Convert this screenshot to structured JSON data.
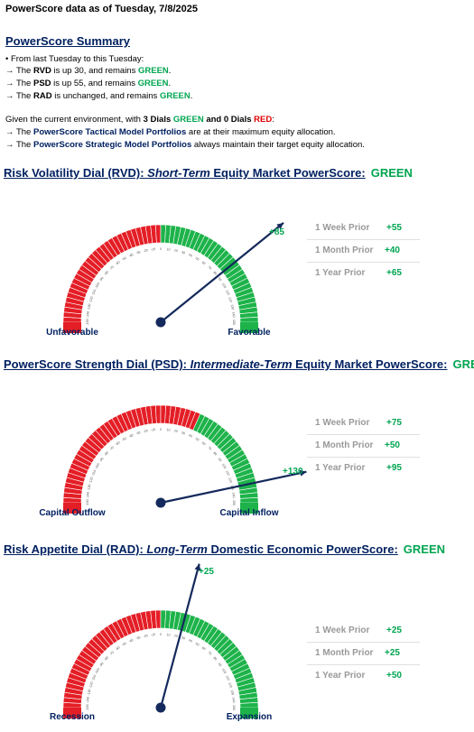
{
  "header": {
    "title": "PowerScore data as of Tuesday, 7/8/2025"
  },
  "summary": {
    "title": "PowerScore Summary",
    "intro": "• From last Tuesday to this Tuesday:",
    "rvd": {
      "pre": "→ The ",
      "name": "RVD",
      "mid": " is up 30, and remains ",
      "status": "GREEN",
      "end": "."
    },
    "psd": {
      "pre": "→ The ",
      "name": "PSD",
      "mid": " is up 55, and remains ",
      "status": "GREEN",
      "end": "."
    },
    "rad": {
      "pre": "→ The ",
      "name": "RAD",
      "mid": " is unchanged, and remains ",
      "status": "GREEN",
      "end": "."
    },
    "env": {
      "pre": "Given the current environment, with ",
      "green_count": "3 Dials ",
      "green_word": "GREEN",
      "and": " and ",
      "red_count": "0 Dials ",
      "red_word": "RED",
      "end": ":"
    },
    "tactical": {
      "pre": "→ The ",
      "name": "PowerScore Tactical Model Portfolios",
      "end": " are at their maximum equity allocation."
    },
    "strategic": {
      "pre": "→ The ",
      "name": "PowerScore Strategic Model Portfolios",
      "end": " always maintain their target equity allocation."
    }
  },
  "dials": [
    {
      "title_a": "Risk Volatility Dial (RVD):",
      "title_b": "Short-Term",
      "title_c": " Equity Market PowerScore:",
      "status": "GREEN",
      "left_label": "Unfavorable",
      "right_label": "Favorable",
      "value": 85,
      "value_label": "+85",
      "green_from": 0,
      "priors": [
        {
          "label": "1 Week Prior",
          "value": "+55"
        },
        {
          "label": "1 Month Prior",
          "value": "+40"
        },
        {
          "label": "1 Year Prior",
          "value": "+65"
        }
      ]
    },
    {
      "title_a": "PowerScore Strength Dial (PSD):",
      "title_b": "Intermediate-Term",
      "title_c": " Equity Market PowerScore:",
      "status": "GREEN",
      "left_label": "Capital Outflow",
      "right_label": "Capital Inflow",
      "value": 130,
      "value_label": "+130",
      "green_from": 40,
      "priors": [
        {
          "label": "1 Week Prior",
          "value": "+75"
        },
        {
          "label": "1 Month Prior",
          "value": "+50"
        },
        {
          "label": "1 Year Prior",
          "value": "+95"
        }
      ]
    },
    {
      "title_a": "Risk Appetite Dial (RAD):",
      "title_b": "Long-Term",
      "title_c": " Domestic Economic PowerScore:",
      "status": "GREEN",
      "left_label": "Recession",
      "right_label": "Expansion",
      "value": 25,
      "value_label": "+25",
      "green_from": 0,
      "priors": [
        {
          "label": "1 Week Prior",
          "value": "+25"
        },
        {
          "label": "1 Month Prior",
          "value": "+25"
        },
        {
          "label": "1 Year Prior",
          "value": "+50"
        }
      ]
    }
  ]
}
